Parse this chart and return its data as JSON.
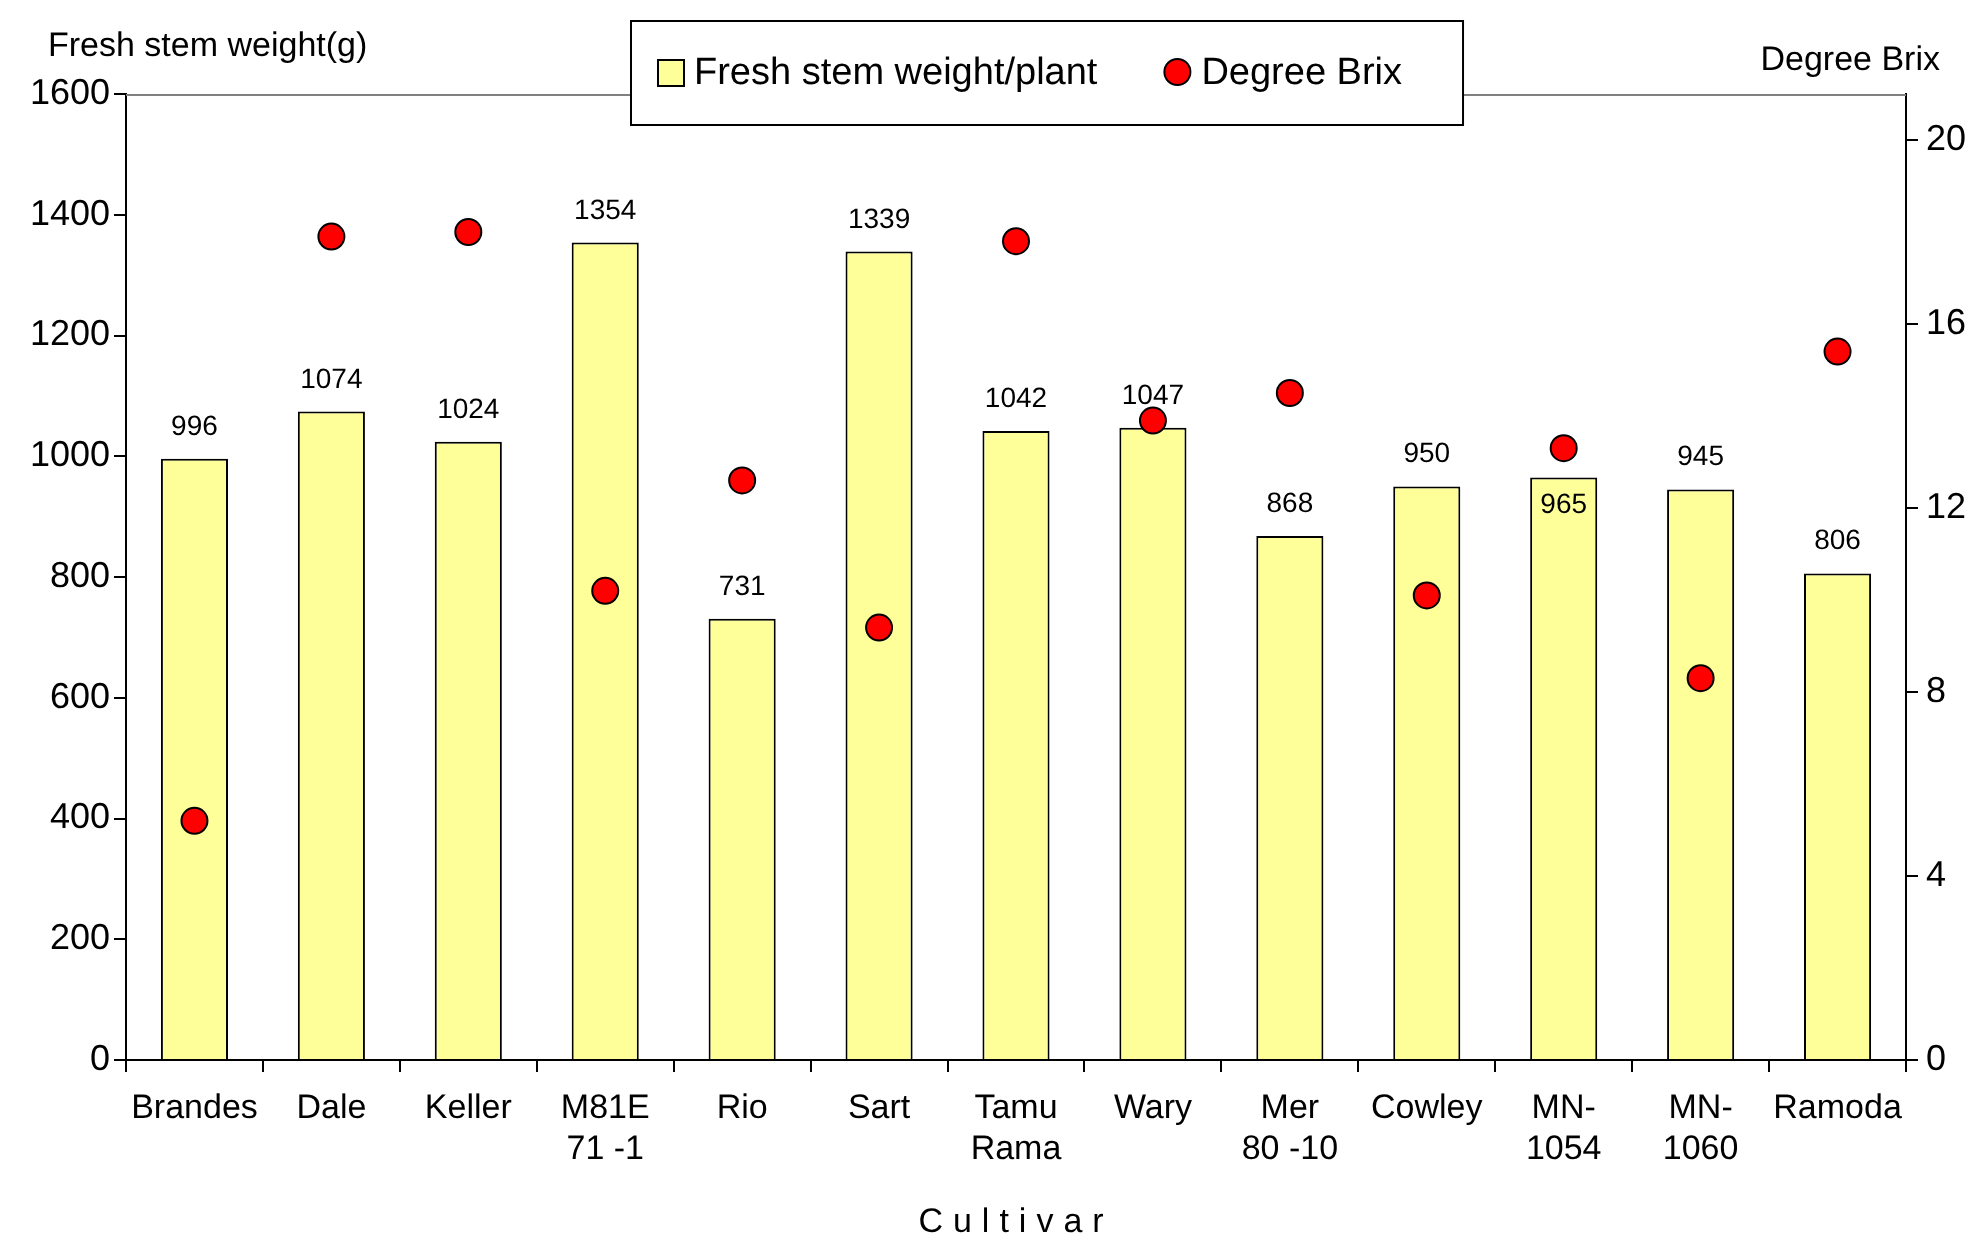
{
  "chart_data": {
    "type": "bar",
    "xlabel": "Cultivar",
    "ylabel": "Fresh stem weight(g)",
    "y2label": "Degree Brix",
    "categories": [
      "Brandes",
      "Dale",
      "Keller",
      "M81E\n71 -1",
      "Rio",
      "Sart",
      "Tamu\nRama",
      "Wary",
      "Mer\n80 -10",
      "Cowley",
      "MN-\n1054",
      "MN-\n1060",
      "Ramoda"
    ],
    "series": [
      {
        "name": "Fresh stem weight/plant",
        "color": "#ffff99",
        "values": [
          996,
          1074,
          1024,
          1354,
          731,
          1339,
          1042,
          1047,
          868,
          950,
          965,
          945,
          806
        ],
        "value_labels": [
          "996",
          "1074",
          "1024",
          "1354",
          "731",
          "1339",
          "1042",
          "1047",
          "868",
          "950",
          "965",
          "945",
          "806"
        ]
      },
      {
        "name": "Degree Brix",
        "type": "scatter",
        "axis": "y2",
        "color": "#ff0000",
        "values": [
          5.2,
          17.9,
          18.0,
          10.2,
          12.6,
          9.4,
          17.8,
          13.9,
          14.5,
          10.1,
          13.3,
          8.3,
          15.4
        ]
      }
    ],
    "ylim": [
      0,
      1600
    ],
    "yticks": [
      0,
      200,
      400,
      600,
      800,
      1000,
      1200,
      1400,
      1600
    ],
    "y2lim": [
      0,
      21
    ],
    "y2ticks": [
      0,
      4,
      8,
      12,
      16,
      20
    ],
    "legend": "top",
    "marker": "circle",
    "grid": false
  }
}
